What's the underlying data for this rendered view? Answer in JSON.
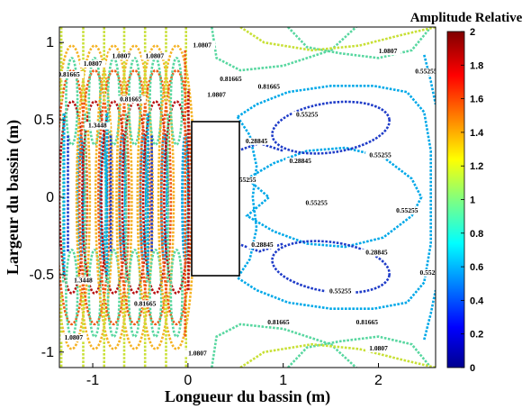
{
  "chart_data": {
    "type": "contour",
    "title": "",
    "xlabel": "Longueur du bassin (m)",
    "ylabel": "Largeur du bassin (m)",
    "xlim": [
      -1.35,
      2.6
    ],
    "ylim": [
      -1.1,
      1.1
    ],
    "xticks": [
      {
        "value": -1,
        "label": "-1"
      },
      {
        "value": 0,
        "label": "0"
      },
      {
        "value": 1,
        "label": "1"
      },
      {
        "value": 2,
        "label": "2"
      }
    ],
    "yticks": [
      {
        "value": 1,
        "label": "1"
      },
      {
        "value": 0.5,
        "label": "0.5"
      },
      {
        "value": 0,
        "label": "0"
      },
      {
        "value": -0.5,
        "label": "-0.5"
      },
      {
        "value": -1,
        "label": "-1"
      }
    ],
    "obstacle": {
      "x": [
        0,
        0.5
      ],
      "y": [
        -0.5,
        0.5
      ]
    },
    "colorbar": {
      "title": "Amplitude Relative",
      "min": 0,
      "max": 2,
      "colormap": "jet",
      "ticks": [
        "2",
        "1.8",
        "1.6",
        "1.4",
        "1.2",
        "1",
        "0.8",
        "0.6",
        "0.4",
        "0.2",
        "0"
      ]
    },
    "levels": [
      0.28845,
      0.55255,
      0.81665,
      1.0807,
      1.3448,
      1.6089,
      1.873
    ],
    "level_colors": {
      "0.28845": "#1f3cc8",
      "0.55255": "#00a8e8",
      "0.81665": "#58d7a0",
      "1.0807": "#c8e036",
      "1.3448": "#f5b223",
      "1.6089": "#f05a14",
      "1.873": "#b80f0f"
    },
    "contour_labels": [
      {
        "text": "0.28845",
        "x": 1.18,
        "y": 0.22
      },
      {
        "text": "0.28845",
        "x": 0.72,
        "y": 0.35
      },
      {
        "text": "0.28845",
        "x": 0.78,
        "y": -0.32
      },
      {
        "text": "0.28845",
        "x": 1.98,
        "y": -0.37
      },
      {
        "text": "0.55255",
        "x": 1.25,
        "y": 0.52
      },
      {
        "text": "0.55255",
        "x": 2.02,
        "y": 0.26
      },
      {
        "text": "0.55255",
        "x": 0.6,
        "y": 0.1
      },
      {
        "text": "0.55255",
        "x": 1.35,
        "y": -0.05
      },
      {
        "text": "0.55255",
        "x": 2.3,
        "y": -0.1
      },
      {
        "text": "0.55255",
        "x": 2.5,
        "y": 0.8
      },
      {
        "text": "0.55255",
        "x": 2.55,
        "y": -0.5
      },
      {
        "text": "0.55255",
        "x": 1.6,
        "y": -0.62
      },
      {
        "text": "0.81665",
        "x": 0.85,
        "y": 0.7
      },
      {
        "text": "0.81665",
        "x": 0.45,
        "y": 0.75
      },
      {
        "text": "0.81665",
        "x": 1.88,
        "y": -0.82
      },
      {
        "text": "0.81665",
        "x": 0.95,
        "y": -0.82
      },
      {
        "text": "0.81665",
        "x": -1.25,
        "y": 0.78
      },
      {
        "text": "0.81665",
        "x": -0.6,
        "y": 0.62
      },
      {
        "text": "0.81665",
        "x": -0.45,
        "y": -0.7
      },
      {
        "text": "1.0807",
        "x": 2.1,
        "y": 0.93
      },
      {
        "text": "1.0807",
        "x": 2.0,
        "y": -0.99
      },
      {
        "text": "1.0807",
        "x": 0.15,
        "y": 0.97
      },
      {
        "text": "1.0807",
        "x": 0.3,
        "y": 0.65
      },
      {
        "text": "1.0807",
        "x": -1.0,
        "y": 0.85
      },
      {
        "text": "1.0807",
        "x": -0.7,
        "y": 0.9
      },
      {
        "text": "1.0807",
        "x": -0.35,
        "y": 0.9
      },
      {
        "text": "1.0807",
        "x": 0.1,
        "y": -1.02
      },
      {
        "text": "1.0807",
        "x": -1.2,
        "y": -0.92
      },
      {
        "text": "1.3448",
        "x": -1.1,
        "y": -0.55
      },
      {
        "text": "1.3448",
        "x": -0.95,
        "y": 0.45
      }
    ]
  }
}
